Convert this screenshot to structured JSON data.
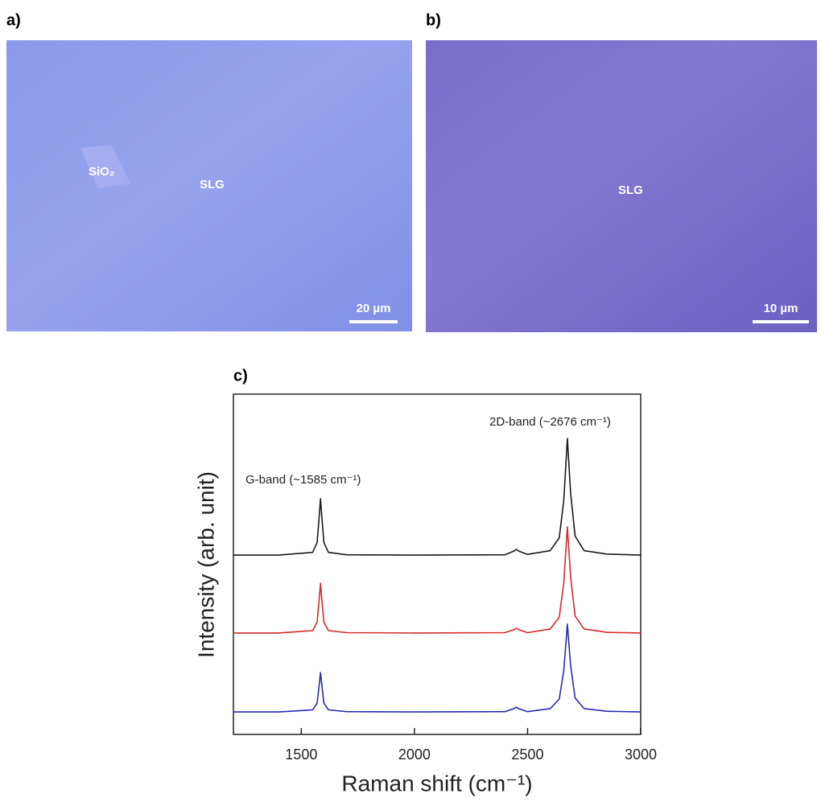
{
  "panels": {
    "a": {
      "label": "a)",
      "sample_label": "SiO₂",
      "film_label": "SLG",
      "scale_bar": "20 µm"
    },
    "b": {
      "label": "b)",
      "film_label": "SLG",
      "scale_bar": "10 µm"
    }
  },
  "chart_data": {
    "type": "line",
    "panel_label": "c)",
    "xlabel": "Raman shift (cm⁻¹)",
    "ylabel": "Intensity (arb. unit)",
    "annotations": [
      "G-band (~1585 cm⁻¹)",
      "2D-band (~2676 cm⁻¹)"
    ],
    "x": [
      1200,
      1400,
      1550,
      1570,
      1580,
      1585,
      1590,
      1600,
      1620,
      1700,
      2000,
      2400,
      2440,
      2450,
      2460,
      2500,
      2600,
      2640,
      2660,
      2676,
      2690,
      2710,
      2750,
      2850,
      3000
    ],
    "series": [
      {
        "color": "#1a1a1a",
        "values": [
          52.7,
          52.7,
          53.5,
          56.4,
          64.7,
          69.3,
          64.7,
          56.4,
          53.5,
          52.8,
          52.7,
          52.8,
          53.9,
          54.4,
          53.9,
          52.9,
          54,
          57.8,
          68.7,
          87,
          71,
          58.3,
          54,
          53,
          52.7
        ]
      },
      {
        "color": "#d42a2a",
        "values": [
          29.8,
          29.8,
          30.5,
          33.0,
          40.3,
          44.4,
          40.3,
          33.0,
          30.5,
          29.9,
          29.8,
          29.9,
          30.8,
          31.2,
          30.8,
          29.9,
          31.0,
          34.4,
          44.5,
          61,
          46.3,
          34.8,
          31.0,
          30.0,
          29.8
        ]
      },
      {
        "color": "#2a2ab0",
        "values": [
          6.6,
          6.6,
          7.2,
          9.2,
          15.0,
          18.2,
          15.0,
          9.2,
          7.2,
          6.7,
          6.6,
          6.7,
          7.6,
          8.0,
          7.6,
          6.7,
          7.6,
          10.4,
          18.7,
          32.4,
          20.3,
          10.7,
          7.6,
          6.8,
          6.6
        ]
      }
    ],
    "xlim": [
      1200,
      3000
    ],
    "ylim": [
      0,
      100
    ],
    "xticks": [
      1500,
      2000,
      2500,
      3000
    ]
  }
}
